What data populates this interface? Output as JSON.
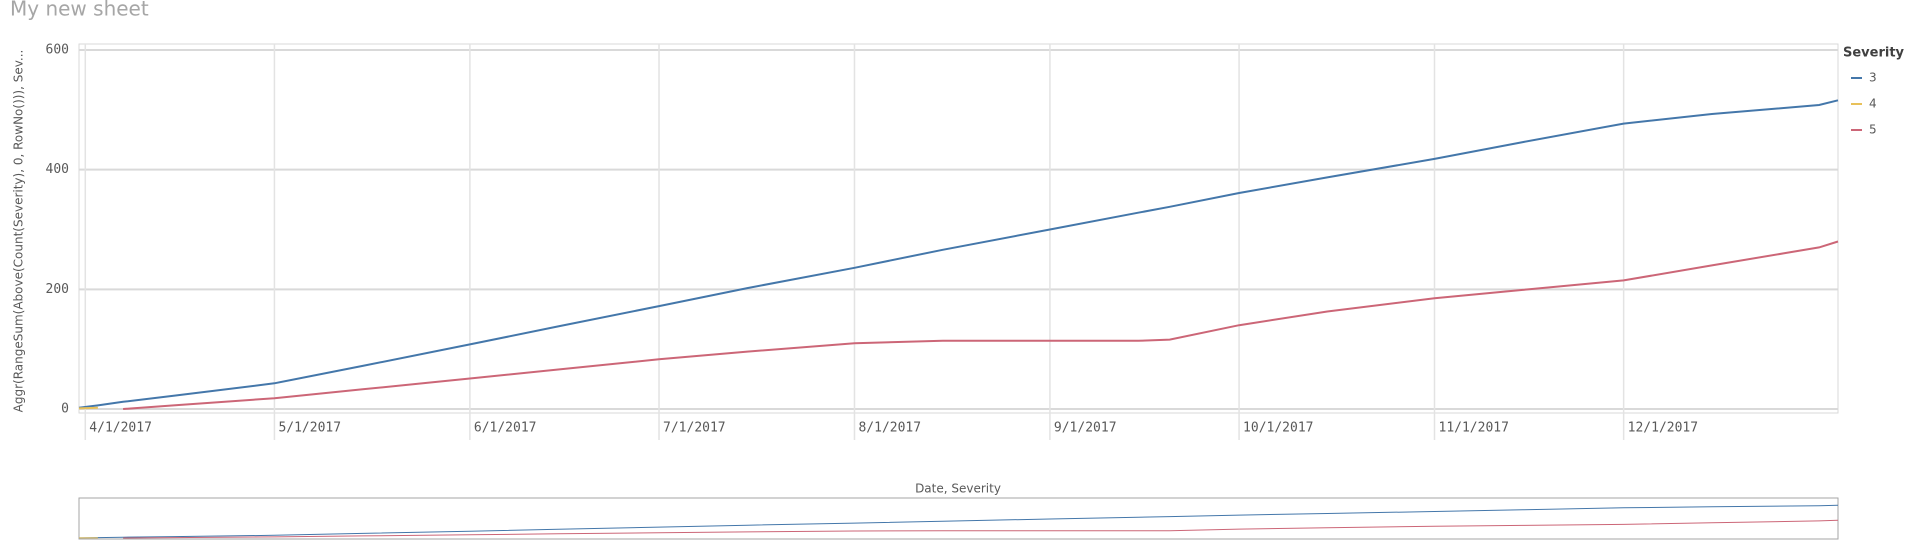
{
  "sheet_title": "My new sheet",
  "chart_data": {
    "type": "line",
    "y_label": "Aggr(RangeSum(Above(Count(Severity), 0, RowNo())), Sev...",
    "legend_title": "Severity",
    "legend": "right",
    "grid": true,
    "navigator_label": "Date, Severity",
    "x": [
      "3/31/2017",
      "4/3/2017",
      "4/7/2017",
      "4/15/2017",
      "5/1/2017",
      "5/15/2017",
      "6/1/2017",
      "6/15/2017",
      "7/1/2017",
      "7/15/2017",
      "8/1/2017",
      "8/15/2017",
      "9/1/2017",
      "9/15/2017",
      "9/20/2017",
      "10/1/2017",
      "10/15/2017",
      "11/1/2017",
      "11/15/2017",
      "12/1/2017",
      "12/15/2017",
      "1/1/2018",
      "1/4/2018"
    ],
    "series": [
      {
        "name": "3",
        "color": "#4477aa",
        "values": [
          2,
          6,
          12,
          22,
          43,
          72,
          108,
          138,
          172,
          202,
          236,
          266,
          300,
          328,
          338,
          361,
          387,
          418,
          446,
          477,
          493,
          508,
          516
        ]
      },
      {
        "name": "4",
        "color": "#e8c15a",
        "values": [
          1,
          2,
          null,
          null,
          null,
          null,
          null,
          null,
          null,
          null,
          null,
          null,
          null,
          null,
          null,
          null,
          null,
          null,
          null,
          null,
          null,
          null,
          null
        ]
      },
      {
        "name": "5",
        "color": "#cc6677",
        "values": [
          null,
          null,
          0,
          6,
          18,
          33,
          51,
          66,
          83,
          96,
          110,
          114,
          114,
          114,
          116,
          140,
          163,
          185,
          199,
          215,
          240,
          270,
          280
        ]
      }
    ],
    "xlim": [
      "3/31/2017",
      "1/4/2018"
    ],
    "xticks": [
      "4/1/2017",
      "5/1/2017",
      "6/1/2017",
      "7/1/2017",
      "8/1/2017",
      "9/1/2017",
      "10/1/2017",
      "11/1/2017",
      "12/1/2017"
    ],
    "ylim": [
      0,
      600
    ],
    "yticks": [
      0,
      200,
      400,
      600
    ]
  }
}
